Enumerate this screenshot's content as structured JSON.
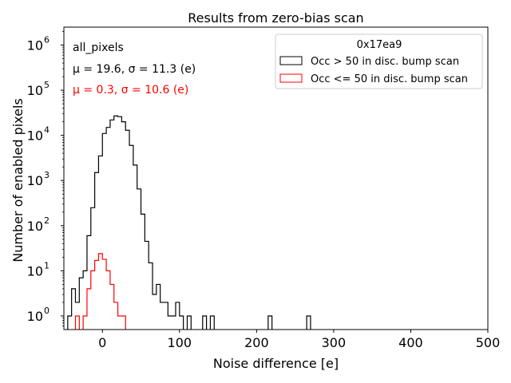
{
  "chart_data": {
    "type": "histogram",
    "title": "Results from zero-bias scan",
    "xlabel": "Noise difference [e]",
    "ylabel": "Number of enabled pixels",
    "xlim": [
      -50,
      500
    ],
    "ylim": [
      0.5,
      2500000
    ],
    "yscale": "log",
    "bin_width": 5,
    "xticks": [
      0,
      100,
      200,
      300,
      400,
      500
    ],
    "xtick_labels": [
      "0",
      "100",
      "200",
      "300",
      "400",
      "500"
    ],
    "yticks": [
      1,
      10,
      100,
      1000,
      10000,
      100000,
      1000000
    ],
    "ytick_labels": [
      "10",
      "10",
      "10",
      "10",
      "10",
      "10",
      "10"
    ],
    "ytick_exponents": [
      "0",
      "1",
      "2",
      "3",
      "4",
      "5",
      "6"
    ],
    "annotations": {
      "label": "all_pixels",
      "black_stats": "μ = 19.6, σ = 11.3 (e)",
      "red_stats": "μ = 0.3, σ = 10.6 (e)"
    },
    "legend": {
      "title": "0x17ea9",
      "placement": "top-right",
      "entries": [
        "Occ > 50 in disc. bump scan",
        "Occ <= 50 in disc. bump scan"
      ]
    },
    "series": [
      {
        "name": "Occ > 50 in disc. bump scan",
        "color": "#000000",
        "bins": [
          {
            "x": -45,
            "v": 1
          },
          {
            "x": -40,
            "v": 4
          },
          {
            "x": -35,
            "v": 2
          },
          {
            "x": -30,
            "v": 7
          },
          {
            "x": -25,
            "v": 10
          },
          {
            "x": -20,
            "v": 60
          },
          {
            "x": -15,
            "v": 250
          },
          {
            "x": -10,
            "v": 1500
          },
          {
            "x": -5,
            "v": 3500
          },
          {
            "x": 0,
            "v": 11000
          },
          {
            "x": 5,
            "v": 15000
          },
          {
            "x": 10,
            "v": 22000
          },
          {
            "x": 15,
            "v": 27000
          },
          {
            "x": 20,
            "v": 26000
          },
          {
            "x": 25,
            "v": 20000
          },
          {
            "x": 30,
            "v": 13000
          },
          {
            "x": 35,
            "v": 6000
          },
          {
            "x": 40,
            "v": 2200
          },
          {
            "x": 45,
            "v": 650
          },
          {
            "x": 50,
            "v": 180
          },
          {
            "x": 55,
            "v": 45
          },
          {
            "x": 60,
            "v": 15
          },
          {
            "x": 65,
            "v": 3
          },
          {
            "x": 70,
            "v": 5
          },
          {
            "x": 75,
            "v": 2
          },
          {
            "x": 80,
            "v": 2
          },
          {
            "x": 85,
            "v": 1
          },
          {
            "x": 90,
            "v": 1
          },
          {
            "x": 95,
            "v": 2
          },
          {
            "x": 100,
            "v": 1
          },
          {
            "x": 105,
            "v": 0
          },
          {
            "x": 110,
            "v": 1
          },
          {
            "x": 130,
            "v": 1
          },
          {
            "x": 140,
            "v": 1
          },
          {
            "x": 215,
            "v": 1
          },
          {
            "x": 265,
            "v": 1
          }
        ]
      },
      {
        "name": "Occ <= 50 in disc. bump scan",
        "color": "#ff0000",
        "bins": [
          {
            "x": -35,
            "v": 1
          },
          {
            "x": -25,
            "v": 1
          },
          {
            "x": -20,
            "v": 4
          },
          {
            "x": -15,
            "v": 10
          },
          {
            "x": -10,
            "v": 17
          },
          {
            "x": -5,
            "v": 24
          },
          {
            "x": 0,
            "v": 18
          },
          {
            "x": 5,
            "v": 10
          },
          {
            "x": 10,
            "v": 5
          },
          {
            "x": 15,
            "v": 2
          },
          {
            "x": 20,
            "v": 1
          },
          {
            "x": 25,
            "v": 1
          }
        ]
      }
    ]
  }
}
